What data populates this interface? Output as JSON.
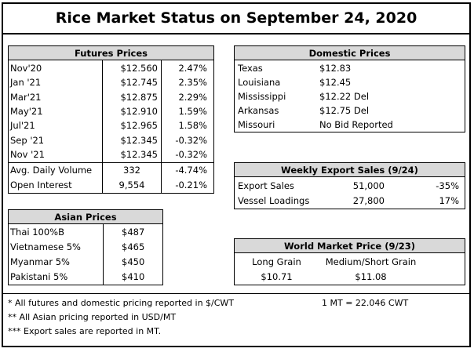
{
  "title": "Rice Market Status on September 24, 2020",
  "futures": {
    "header": "Futures Prices",
    "rows": [
      {
        "month": "Nov'20",
        "price": "$12.560",
        "change": "2.47%"
      },
      {
        "month": "Jan '21",
        "price": "$12.745",
        "change": "2.35%"
      },
      {
        "month": "Mar'21",
        "price": "$12.875",
        "change": "2.29%"
      },
      {
        "month": "May'21",
        "price": "$12.910",
        "change": "1.59%"
      },
      {
        "month": "Jul'21",
        "price": "$12.965",
        "change": "1.58%"
      },
      {
        "month": "Sep '21",
        "price": "$12.345",
        "change": "-0.32%"
      },
      {
        "month": "Nov '21",
        "price": "$12.345",
        "change": "-0.32%"
      }
    ],
    "volume_label": "Avg. Daily Volume",
    "volume_value": "332",
    "volume_change": "-4.74%",
    "oi_label": "Open Interest",
    "oi_value": "9,554",
    "oi_change": "-0.21%"
  },
  "domestic": {
    "header": "Domestic Prices",
    "rows": [
      {
        "state": "Texas",
        "price": "$12.83"
      },
      {
        "state": "Louisiana",
        "price": "$12.45"
      },
      {
        "state": "Mississippi",
        "price": "$12.22 Del"
      },
      {
        "state": "Arkansas",
        "price": "$12.75 Del"
      },
      {
        "state": "Missouri",
        "price": "No Bid Reported"
      }
    ]
  },
  "export": {
    "header": "Weekly Export Sales (9/24)",
    "rows": [
      {
        "label": "Export Sales",
        "value": "51,000",
        "change": "-35%"
      },
      {
        "label": "Vessel Loadings",
        "value": "27,800",
        "change": "17%"
      }
    ]
  },
  "asian": {
    "header": "Asian Prices",
    "rows": [
      {
        "name": "Thai 100%B",
        "price": "$487"
      },
      {
        "name": "Vietnamese 5%",
        "price": "$465"
      },
      {
        "name": "Myanmar 5%",
        "price": "$450"
      },
      {
        "name": "Pakistani 5%",
        "price": "$410"
      }
    ]
  },
  "world": {
    "header": "World Market Price (9/23)",
    "long_label": "Long Grain",
    "long_value": "$10.71",
    "medium_label": "Medium/Short Grain",
    "medium_value": "$11.08"
  },
  "footnotes": {
    "note1": "* All futures and domestic pricing reported in $/CWT",
    "note2": "** All Asian pricing reported in USD/MT",
    "note3": "*** Export sales are reported in MT.",
    "conversion": "1 MT = 22.046 CWT"
  }
}
